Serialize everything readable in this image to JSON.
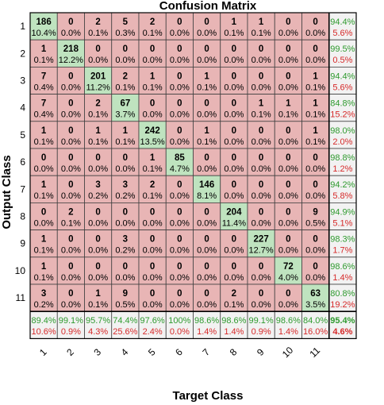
{
  "chart_data": {
    "type": "heatmap",
    "title": "Confusion Matrix",
    "xlabel": "Target Class",
    "ylabel": "Output Class",
    "x_ticks": [
      "1",
      "2",
      "3",
      "4",
      "5",
      "6",
      "7",
      "8",
      "9",
      "10",
      "11"
    ],
    "y_ticks": [
      "1",
      "2",
      "3",
      "4",
      "5",
      "6",
      "7",
      "8",
      "9",
      "10",
      "11"
    ],
    "counts": [
      [
        186,
        0,
        2,
        5,
        2,
        0,
        0,
        1,
        1,
        0,
        0
      ],
      [
        1,
        218,
        0,
        0,
        0,
        0,
        0,
        0,
        0,
        0,
        0
      ],
      [
        7,
        0,
        201,
        2,
        1,
        0,
        1,
        0,
        0,
        0,
        1
      ],
      [
        7,
        0,
        2,
        67,
        0,
        0,
        0,
        0,
        1,
        1,
        1
      ],
      [
        1,
        0,
        1,
        1,
        242,
        0,
        1,
        0,
        0,
        0,
        1
      ],
      [
        0,
        0,
        0,
        0,
        1,
        85,
        0,
        0,
        0,
        0,
        0
      ],
      [
        1,
        0,
        3,
        3,
        2,
        0,
        146,
        0,
        0,
        0,
        0
      ],
      [
        0,
        2,
        0,
        0,
        0,
        0,
        0,
        204,
        0,
        0,
        9
      ],
      [
        1,
        0,
        0,
        3,
        0,
        0,
        0,
        0,
        227,
        0,
        0
      ],
      [
        1,
        0,
        0,
        0,
        0,
        0,
        0,
        0,
        0,
        72,
        0
      ],
      [
        3,
        0,
        1,
        9,
        0,
        0,
        0,
        2,
        0,
        0,
        63
      ]
    ],
    "percents": [
      [
        "10.4%",
        "0.0%",
        "0.1%",
        "0.3%",
        "0.1%",
        "0.0%",
        "0.0%",
        "0.1%",
        "0.1%",
        "0.0%",
        "0.0%"
      ],
      [
        "0.1%",
        "12.2%",
        "0.0%",
        "0.0%",
        "0.0%",
        "0.0%",
        "0.0%",
        "0.0%",
        "0.0%",
        "0.0%",
        "0.0%"
      ],
      [
        "0.4%",
        "0.0%",
        "11.2%",
        "0.1%",
        "0.1%",
        "0.0%",
        "0.1%",
        "0.0%",
        "0.0%",
        "0.0%",
        "0.1%"
      ],
      [
        "0.4%",
        "0.0%",
        "0.1%",
        "3.7%",
        "0.0%",
        "0.0%",
        "0.0%",
        "0.0%",
        "0.1%",
        "0.1%",
        "0.1%"
      ],
      [
        "0.1%",
        "0.0%",
        "0.1%",
        "0.1%",
        "13.5%",
        "0.0%",
        "0.1%",
        "0.0%",
        "0.0%",
        "0.0%",
        "0.1%"
      ],
      [
        "0.0%",
        "0.0%",
        "0.0%",
        "0.0%",
        "0.1%",
        "4.7%",
        "0.0%",
        "0.0%",
        "0.0%",
        "0.0%",
        "0.0%"
      ],
      [
        "0.1%",
        "0.0%",
        "0.2%",
        "0.2%",
        "0.1%",
        "0.0%",
        "8.1%",
        "0.0%",
        "0.0%",
        "0.0%",
        "0.0%"
      ],
      [
        "0.0%",
        "0.1%",
        "0.0%",
        "0.0%",
        "0.0%",
        "0.0%",
        "0.0%",
        "11.4%",
        "0.0%",
        "0.0%",
        "0.5%"
      ],
      [
        "0.1%",
        "0.0%",
        "0.0%",
        "0.2%",
        "0.0%",
        "0.0%",
        "0.0%",
        "0.0%",
        "12.7%",
        "0.0%",
        "0.0%"
      ],
      [
        "0.1%",
        "0.0%",
        "0.0%",
        "0.0%",
        "0.0%",
        "0.0%",
        "0.0%",
        "0.0%",
        "0.0%",
        "4.0%",
        "0.0%"
      ],
      [
        "0.2%",
        "0.0%",
        "0.1%",
        "0.5%",
        "0.0%",
        "0.0%",
        "0.0%",
        "0.1%",
        "0.0%",
        "0.0%",
        "3.5%"
      ]
    ],
    "row_summary": [
      [
        "94.4%",
        "5.6%"
      ],
      [
        "99.5%",
        "0.5%"
      ],
      [
        "94.4%",
        "5.6%"
      ],
      [
        "84.8%",
        "15.2%"
      ],
      [
        "98.0%",
        "2.0%"
      ],
      [
        "98.8%",
        "1.2%"
      ],
      [
        "94.2%",
        "5.8%"
      ],
      [
        "94.9%",
        "5.1%"
      ],
      [
        "98.3%",
        "1.7%"
      ],
      [
        "98.6%",
        "1.4%"
      ],
      [
        "80.8%",
        "19.2%"
      ]
    ],
    "col_summary": [
      [
        "89.4%",
        "10.6%"
      ],
      [
        "99.1%",
        "0.9%"
      ],
      [
        "95.7%",
        "4.3%"
      ],
      [
        "74.4%",
        "25.6%"
      ],
      [
        "97.6%",
        "2.4%"
      ],
      [
        "100%",
        "0.0%"
      ],
      [
        "98.6%",
        "1.4%"
      ],
      [
        "98.6%",
        "1.4%"
      ],
      [
        "99.1%",
        "0.9%"
      ],
      [
        "98.6%",
        "1.4%"
      ],
      [
        "84.0%",
        "16.0%"
      ]
    ],
    "overall": [
      "95.4%",
      "4.6%"
    ],
    "colors": {
      "correct": "#bfe3bf",
      "incorrect": "#e8b5b5",
      "summary": "#f2f2f2",
      "summary_good": "#2e9a2e",
      "summary_bad": "#d62a2a",
      "grid": "#404040"
    }
  }
}
